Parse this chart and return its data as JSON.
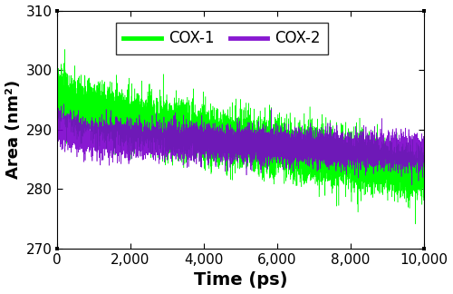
{
  "title": "",
  "xlabel": "Time (ps)",
  "ylabel": "Area (nm²)",
  "xlim": [
    0,
    10000
  ],
  "ylim": [
    270,
    310
  ],
  "yticks": [
    270,
    280,
    290,
    300,
    310
  ],
  "xticks": [
    0,
    2000,
    4000,
    6000,
    8000,
    10000
  ],
  "xtick_labels": [
    "0",
    "2,000",
    "4,000",
    "6,000",
    "8,000",
    "10,000"
  ],
  "cox1_color": "#00ff00",
  "cox2_color": "#7b00cc",
  "legend_labels": [
    "COX-1",
    "COX-2"
  ],
  "n_points": 10000,
  "seed": 42,
  "cox1_start": 294.0,
  "cox1_end": 282.5,
  "cox1_decay_amp": 2.5,
  "cox1_decay_tau": 300,
  "cox1_noise": 2.2,
  "cox2_start": 289.0,
  "cox2_end": 286.0,
  "cox2_decay_amp": 2.0,
  "cox2_decay_tau": 400,
  "cox2_noise": 1.4,
  "xlabel_fontsize": 14,
  "ylabel_fontsize": 13,
  "tick_fontsize": 11,
  "legend_fontsize": 12,
  "linewidth_cox1": 0.35,
  "linewidth_cox2": 0.45
}
